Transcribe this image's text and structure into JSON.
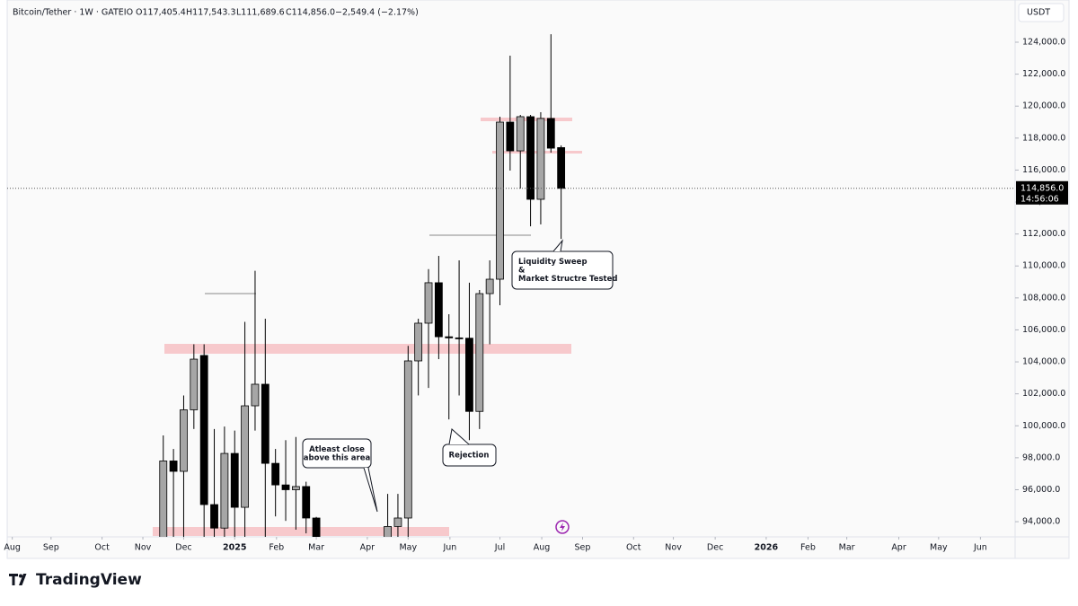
{
  "header": {
    "symbol": "Bitcoin/Tether · 1W · GATEIO",
    "open": "O117,405.4",
    "high": "H117,543.3",
    "low": "L111,689.6",
    "close": "C114,856.0",
    "change": "−2,549.4 (−2.17%)"
  },
  "footer": {
    "brand": "TradingView"
  },
  "chart_data": {
    "type": "candlestick",
    "currency": "USDT",
    "last_price_label": "114,856.0",
    "countdown": "14:56:06",
    "up_color": "#a6a6a6",
    "down_color": "#000000",
    "categories": [
      null,
      null,
      null,
      null,
      null,
      null,
      null,
      null,
      null,
      null,
      null,
      null,
      null,
      null,
      null,
      null,
      null,
      null,
      null,
      null,
      null,
      null,
      null,
      null,
      null,
      null,
      null,
      null,
      null,
      null,
      null,
      null,
      null,
      null,
      null,
      null,
      null,
      null,
      null,
      null
    ],
    "open": [
      92000,
      97800,
      97150,
      101000,
      104400,
      95070,
      93600,
      98270,
      94900,
      101250,
      102600,
      97650,
      96300,
      96000,
      96200,
      94230,
      null,
      null,
      null,
      null,
      null,
      null,
      92500,
      93700,
      94230,
      104060,
      106420,
      108950,
      105570,
      105500,
      105480,
      100900,
      108270,
      109170,
      119000,
      117200,
      119340,
      114170,
      119230,
      117405.4
    ],
    "high": [
      99400,
      98550,
      101900,
      105100,
      105100,
      99800,
      99950,
      99700,
      106500,
      109700,
      106700,
      98550,
      99100,
      99300,
      96500,
      94300,
      null,
      null,
      null,
      null,
      null,
      null,
      95740,
      95740,
      105000,
      106700,
      109800,
      110630,
      106980,
      110350,
      108950,
      108500,
      110350,
      119340,
      123160,
      119450,
      119450,
      119620,
      124500,
      117543.3
    ],
    "low": [
      90500,
      91500,
      92000,
      99800,
      92500,
      91800,
      92600,
      92700,
      92800,
      99700,
      92900,
      94330,
      94050,
      93500,
      93270,
      91000,
      null,
      null,
      null,
      null,
      null,
      null,
      91800,
      92900,
      92800,
      101900,
      102370,
      104170,
      100400,
      101900,
      99100,
      99800,
      105100,
      107540,
      115970,
      114840,
      112480,
      112600,
      117090,
      111689.6
    ],
    "close": [
      97800,
      97150,
      101000,
      104170,
      95070,
      93600,
      98270,
      94900,
      101250,
      102600,
      97650,
      96300,
      96000,
      96200,
      94230,
      92500,
      null,
      null,
      null,
      null,
      null,
      null,
      93700,
      94230,
      104060,
      106420,
      108950,
      105570,
      105500,
      105480,
      100900,
      108270,
      109170,
      119000,
      117200,
      119340,
      114170,
      119230,
      117370,
      114856
    ],
    "xlim": [
      -15.3,
      83.5
    ],
    "xticks": [
      {
        "value": -14.8,
        "label": "Aug"
      },
      {
        "value": -11.0,
        "label": "Sep"
      },
      {
        "value": -6.0,
        "label": "Oct"
      },
      {
        "value": -2.0,
        "label": "Nov"
      },
      {
        "value": 2.0,
        "label": "Dec"
      },
      {
        "value": 7.0,
        "label": "2025"
      },
      {
        "value": 11.1,
        "label": "Feb"
      },
      {
        "value": 15.0,
        "label": "Mar"
      },
      {
        "value": 20.0,
        "label": "Apr"
      },
      {
        "value": 24.0,
        "label": "May"
      },
      {
        "value": 28.1,
        "label": "Jun"
      },
      {
        "value": 33.0,
        "label": "Jul"
      },
      {
        "value": 37.1,
        "label": "Aug"
      },
      {
        "value": 41.1,
        "label": "Sep"
      },
      {
        "value": 46.1,
        "label": "Oct"
      },
      {
        "value": 50.0,
        "label": "Nov"
      },
      {
        "value": 54.1,
        "label": "Dec"
      },
      {
        "value": 59.1,
        "label": "2026"
      },
      {
        "value": 63.2,
        "label": "Feb"
      },
      {
        "value": 67.0,
        "label": "Mar"
      },
      {
        "value": 72.1,
        "label": "Apr"
      },
      {
        "value": 76.0,
        "label": "May"
      },
      {
        "value": 80.1,
        "label": "Jun"
      }
    ],
    "ylim": [
      93050,
      126640
    ],
    "yticks": [
      {
        "value": 94000,
        "label": "94,000.0"
      },
      {
        "value": 96000,
        "label": "96,000.0"
      },
      {
        "value": 98000,
        "label": "98,000.0"
      },
      {
        "value": 100000,
        "label": "100,000.0"
      },
      {
        "value": 102000,
        "label": "102,000.0"
      },
      {
        "value": 104000,
        "label": "104,000.0"
      },
      {
        "value": 106000,
        "label": "106,000.0"
      },
      {
        "value": 108000,
        "label": "108,000.0"
      },
      {
        "value": 110000,
        "label": "110,000.0"
      },
      {
        "value": 112000,
        "label": "112,000.0"
      },
      {
        "value": 114000,
        "label": "114,000.0"
      },
      {
        "value": 116000,
        "label": "116,000.0"
      },
      {
        "value": 118000,
        "label": "118,000.0"
      },
      {
        "value": 120000,
        "label": "120,000.0"
      },
      {
        "value": 122000,
        "label": "122,000.0"
      },
      {
        "value": 124000,
        "label": "124,000.0"
      }
    ],
    "annotations": [
      {
        "lines": [
          "Liquidity Sweep",
          "&",
          "Market Structre Tested"
        ]
      },
      {
        "lines": [
          "Rejection"
        ]
      },
      {
        "lines": [
          "Atleast close",
          "above this area"
        ]
      }
    ]
  }
}
